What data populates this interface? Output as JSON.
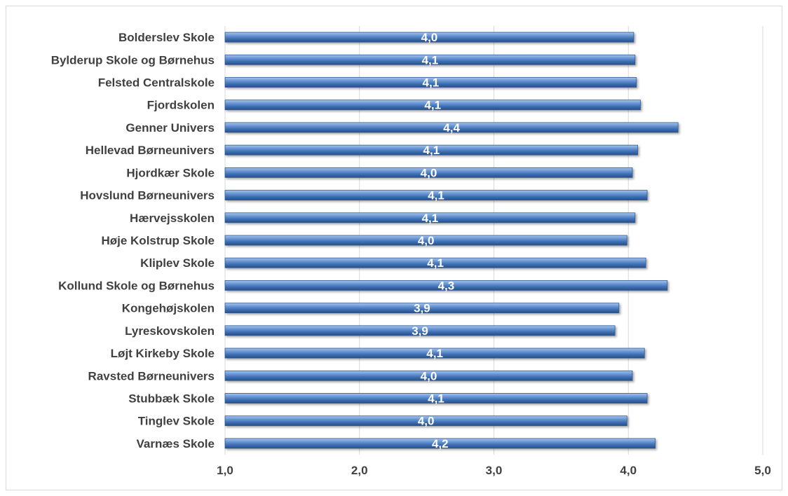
{
  "chart_data": {
    "type": "bar",
    "orientation": "horizontal",
    "title": "",
    "xlabel": "",
    "ylabel": "",
    "xlim": [
      1.0,
      5.0
    ],
    "x_ticks": [
      "1,0",
      "2,0",
      "3,0",
      "4,0",
      "5,0"
    ],
    "x_tick_values": [
      1.0,
      2.0,
      3.0,
      4.0,
      5.0
    ],
    "grid": true,
    "legend": "none",
    "bar_color": "#4f81bd",
    "categories": [
      "Bolderslev Skole",
      "Bylderup Skole og Børnehus",
      "Felsted Centralskole",
      "Fjordskolen",
      "Genner Univers",
      "Hellevad Børneunivers",
      "Hjordkær Skole",
      "Hovslund Børneunivers",
      "Hærvejsskolen",
      "Høje Kolstrup Skole",
      "Kliplev Skole",
      "Kollund Skole og Børnehus",
      "Kongehøjskolen",
      "Lyreskovskolen",
      "Løjt Kirkeby Skole",
      "Ravsted Børneunivers",
      "Stubbæk Skole",
      "Tinglev Skole",
      "Varnæs Skole"
    ],
    "values": [
      4.04,
      4.05,
      4.06,
      4.09,
      4.37,
      4.07,
      4.03,
      4.14,
      4.05,
      3.99,
      4.13,
      4.29,
      3.93,
      3.9,
      4.12,
      4.03,
      4.14,
      3.99,
      4.2
    ],
    "data_labels": [
      "4,0",
      "4,1",
      "4,1",
      "4,1",
      "4,4",
      "4,1",
      "4,0",
      "4,1",
      "4,1",
      "4,0",
      "4,1",
      "4,3",
      "3,9",
      "3,9",
      "4,1",
      "4,0",
      "4,1",
      "4,0",
      "4,2"
    ]
  }
}
